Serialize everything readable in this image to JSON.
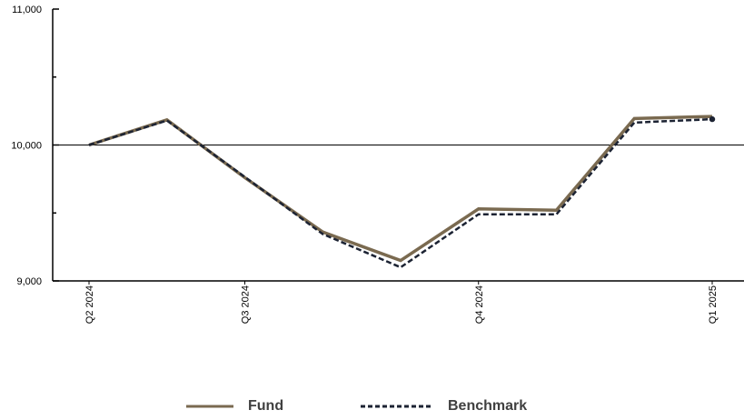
{
  "chart_data": {
    "type": "line",
    "title": "",
    "xlabel": "",
    "ylabel": "",
    "ylim": [
      9000,
      11000
    ],
    "y_ticks": [
      9000,
      10000,
      11000
    ],
    "y_tick_labels": [
      "9,000",
      "10,000",
      "11,000"
    ],
    "x_index_range": [
      0,
      8
    ],
    "x_ticks": [
      {
        "index": 0,
        "label": "Q2 2024"
      },
      {
        "index": 2,
        "label": "Q3 2024"
      },
      {
        "index": 5,
        "label": "Q4 2024"
      },
      {
        "index": 8,
        "label": "Q1 2025"
      }
    ],
    "reference_line": 10000,
    "series": [
      {
        "name": "Fund",
        "color": "#7a6a50",
        "style": "solid",
        "values": [
          10000,
          10185,
          9760,
          9360,
          9150,
          9530,
          9520,
          10195,
          10210
        ]
      },
      {
        "name": "Benchmark",
        "color": "#1c2333",
        "style": "dashed",
        "values": [
          10000,
          10180,
          9765,
          9345,
          9100,
          9490,
          9490,
          10165,
          10190
        ]
      }
    ],
    "grid": false,
    "legend_position": "bottom"
  }
}
